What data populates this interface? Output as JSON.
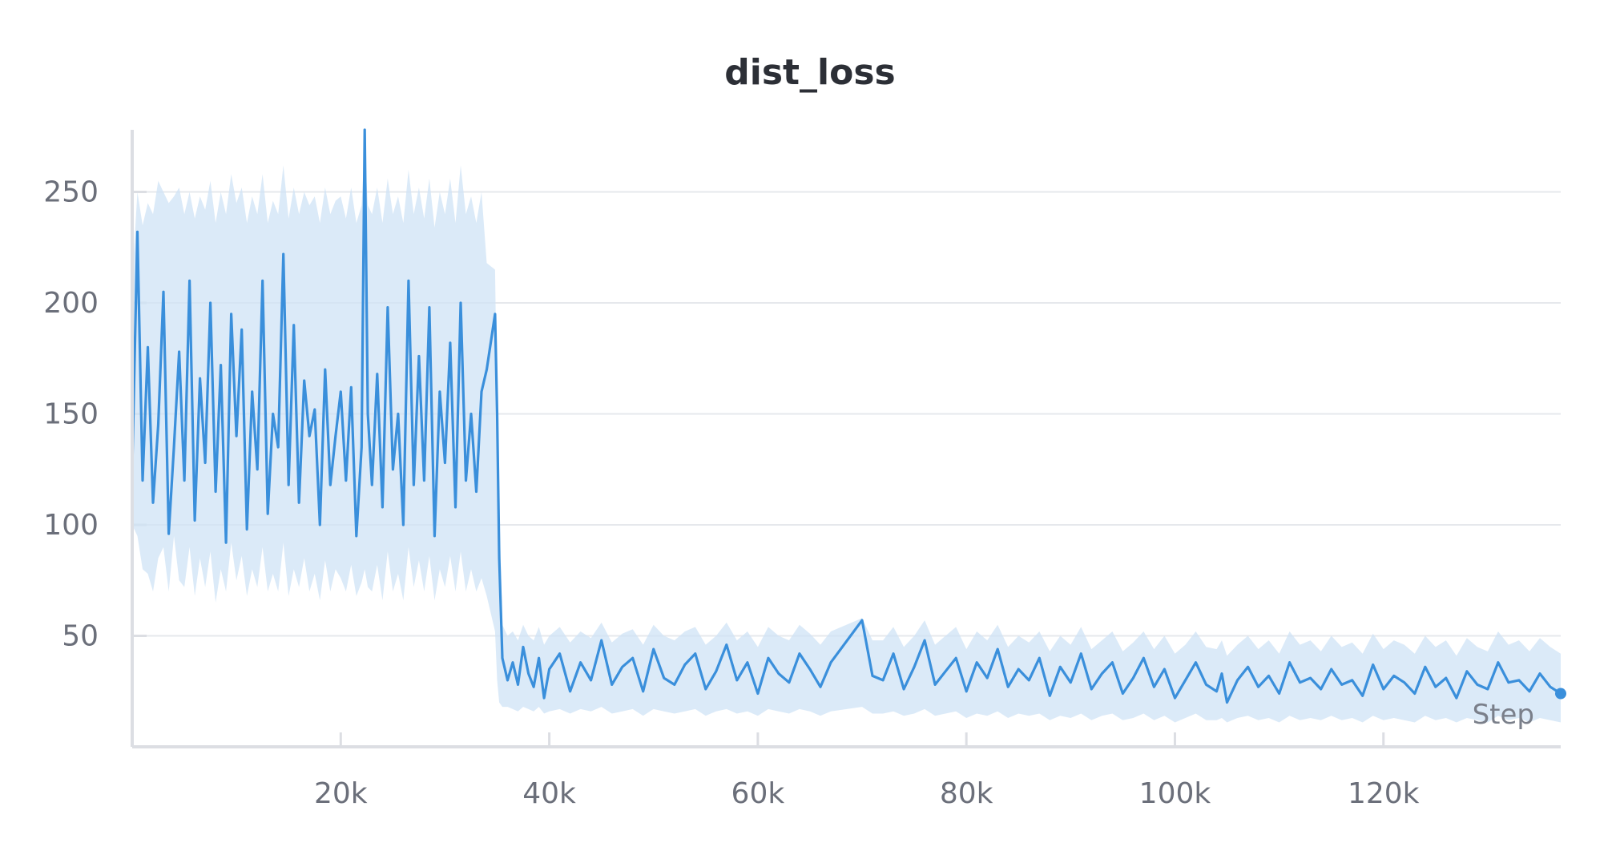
{
  "chart_data": {
    "type": "line",
    "title": "dist_loss",
    "xlabel": "Step",
    "ylabel": "",
    "xlim": [
      0,
      137000
    ],
    "ylim": [
      0,
      278
    ],
    "x_ticks": [
      {
        "value": 20000,
        "label": "20k"
      },
      {
        "value": 40000,
        "label": "40k"
      },
      {
        "value": 60000,
        "label": "60k"
      },
      {
        "value": 80000,
        "label": "80k"
      },
      {
        "value": 100000,
        "label": "100k"
      },
      {
        "value": 120000,
        "label": "120k"
      }
    ],
    "y_ticks": [
      {
        "value": 50,
        "label": "50"
      },
      {
        "value": 100,
        "label": "100"
      },
      {
        "value": 150,
        "label": "150"
      },
      {
        "value": 200,
        "label": "200"
      },
      {
        "value": 250,
        "label": "250"
      }
    ],
    "grid": "horizontal",
    "colors": {
      "line": "#3a8fdb",
      "band": "#cfe3f6",
      "grid": "#e6e8ec",
      "axis": "#dcdee3"
    },
    "series": [
      {
        "x": [
          0,
          500,
          1000,
          1500,
          2000,
          2500,
          3000,
          3500,
          4000,
          4500,
          5000,
          5500,
          6000,
          6500,
          7000,
          7500,
          8000,
          8500,
          9000,
          9500,
          10000,
          10500,
          11000,
          11500,
          12000,
          12500,
          13000,
          13500,
          14000,
          14500,
          15000,
          15500,
          16000,
          16500,
          17000,
          17500,
          18000,
          18500,
          19000,
          19500,
          20000,
          20500,
          21000,
          21500,
          22000,
          22300,
          22600,
          23000,
          23500,
          24000,
          24500,
          25000,
          25500,
          26000,
          26500,
          27000,
          27500,
          28000,
          28500,
          29000,
          29500,
          30000,
          30500,
          31000,
          31500,
          32000,
          32500,
          33000,
          33500,
          34000,
          34800,
          35000,
          35200,
          35500,
          36000,
          36500,
          37000,
          37500,
          38000,
          38500,
          39000,
          39500,
          40000,
          41000,
          42000,
          43000,
          44000,
          45000,
          46000,
          47000,
          48000,
          49000,
          50000,
          51000,
          52000,
          53000,
          54000,
          55000,
          56000,
          57000,
          58000,
          59000,
          60000,
          61000,
          62000,
          63000,
          64000,
          65000,
          66000,
          67000,
          70000,
          71000,
          72000,
          73000,
          74000,
          75000,
          76000,
          77000,
          78000,
          79000,
          80000,
          81000,
          82000,
          83000,
          84000,
          85000,
          86000,
          87000,
          88000,
          89000,
          90000,
          91000,
          92000,
          93000,
          94000,
          95000,
          96000,
          97000,
          98000,
          99000,
          100000,
          101000,
          102000,
          103000,
          104000,
          104500,
          105000,
          106000,
          107000,
          108000,
          109000,
          110000,
          111000,
          112000,
          113000,
          114000,
          115000,
          116000,
          117000,
          118000,
          119000,
          120000,
          121000,
          122000,
          123000,
          124000,
          125000,
          126000,
          127000,
          128000,
          129000,
          130000,
          131000,
          132000,
          133000,
          134000,
          135000,
          136000,
          137000
        ],
        "y": [
          125,
          232,
          120,
          180,
          110,
          145,
          205,
          96,
          135,
          178,
          120,
          210,
          102,
          166,
          128,
          200,
          115,
          172,
          92,
          195,
          140,
          188,
          98,
          160,
          125,
          210,
          105,
          150,
          135,
          222,
          118,
          190,
          110,
          165,
          140,
          152,
          100,
          170,
          118,
          140,
          160,
          120,
          162,
          95,
          135,
          278,
          150,
          118,
          168,
          108,
          198,
          125,
          150,
          100,
          210,
          118,
          176,
          120,
          198,
          95,
          160,
          128,
          182,
          108,
          200,
          120,
          150,
          115,
          160,
          170,
          195,
          150,
          85,
          40,
          30,
          38,
          28,
          45,
          33,
          27,
          40,
          22,
          35,
          42,
          25,
          38,
          30,
          48,
          28,
          36,
          40,
          25,
          44,
          31,
          28,
          37,
          42,
          26,
          34,
          46,
          30,
          38,
          24,
          40,
          33,
          29,
          42,
          35,
          27,
          38,
          57,
          32,
          30,
          42,
          26,
          36,
          48,
          28,
          34,
          40,
          25,
          38,
          31,
          44,
          27,
          35,
          30,
          40,
          23,
          36,
          29,
          42,
          26,
          33,
          38,
          24,
          31,
          40,
          27,
          35,
          22,
          30,
          38,
          28,
          25,
          33,
          20,
          30,
          36,
          27,
          32,
          24,
          38,
          29,
          31,
          26,
          35,
          28,
          30,
          23,
          37,
          26,
          32,
          29,
          24,
          36,
          27,
          31,
          22,
          34,
          28,
          26,
          38,
          29,
          30,
          25,
          33,
          27,
          24
        ],
        "band_lower": [
          100,
          95,
          80,
          78,
          70,
          85,
          90,
          70,
          95,
          75,
          72,
          90,
          68,
          85,
          72,
          88,
          65,
          80,
          70,
          92,
          75,
          86,
          68,
          80,
          72,
          90,
          70,
          78,
          70,
          92,
          68,
          80,
          72,
          85,
          70,
          78,
          66,
          84,
          70,
          80,
          76,
          70,
          82,
          68,
          74,
          80,
          72,
          70,
          82,
          66,
          88,
          70,
          78,
          66,
          90,
          72,
          84,
          70,
          86,
          66,
          80,
          72,
          86,
          70,
          88,
          70,
          80,
          70,
          76,
          68,
          52,
          30,
          20,
          18,
          18,
          17,
          16,
          18,
          17,
          16,
          18,
          15,
          16,
          17,
          15,
          17,
          16,
          18,
          15,
          16,
          17,
          14,
          17,
          16,
          15,
          16,
          17,
          14,
          16,
          17,
          15,
          16,
          14,
          17,
          16,
          15,
          17,
          16,
          14,
          16,
          18,
          15,
          15,
          16,
          14,
          15,
          17,
          14,
          15,
          16,
          13,
          15,
          14,
          16,
          13,
          15,
          14,
          15,
          12,
          14,
          13,
          15,
          12,
          14,
          15,
          12,
          13,
          15,
          12,
          14,
          11,
          13,
          15,
          12,
          12,
          13,
          11,
          13,
          14,
          12,
          13,
          11,
          14,
          12,
          13,
          12,
          14,
          12,
          13,
          11,
          14,
          12,
          13,
          12,
          11,
          14,
          12,
          13,
          11,
          13,
          12,
          11,
          14,
          12,
          13,
          11,
          13,
          12,
          11
        ],
        "band_upper": [
          210,
          250,
          235,
          245,
          240,
          255,
          250,
          245,
          248,
          252,
          240,
          250,
          238,
          248,
          242,
          255,
          236,
          250,
          240,
          258,
          245,
          252,
          236,
          248,
          240,
          258,
          236,
          246,
          240,
          262,
          238,
          252,
          240,
          250,
          244,
          248,
          236,
          252,
          240,
          246,
          248,
          238,
          252,
          236,
          244,
          270,
          244,
          240,
          252,
          236,
          256,
          240,
          248,
          236,
          260,
          240,
          252,
          238,
          256,
          234,
          250,
          240,
          256,
          236,
          262,
          240,
          248,
          236,
          250,
          218,
          215,
          150,
          110,
          55,
          50,
          52,
          48,
          55,
          50,
          48,
          54,
          46,
          50,
          54,
          47,
          52,
          49,
          56,
          47,
          51,
          53,
          46,
          55,
          50,
          48,
          52,
          54,
          46,
          50,
          56,
          48,
          52,
          45,
          54,
          50,
          48,
          55,
          51,
          46,
          52,
          58,
          48,
          48,
          54,
          45,
          50,
          57,
          46,
          50,
          54,
          44,
          52,
          48,
          55,
          45,
          50,
          47,
          52,
          43,
          50,
          46,
          54,
          44,
          48,
          52,
          43,
          47,
          52,
          44,
          50,
          42,
          46,
          52,
          45,
          44,
          48,
          41,
          46,
          50,
          44,
          48,
          42,
          52,
          46,
          48,
          43,
          50,
          45,
          47,
          42,
          51,
          44,
          48,
          46,
          42,
          50,
          45,
          48,
          41,
          49,
          45,
          43,
          52,
          46,
          48,
          43,
          49,
          45,
          42
        ]
      }
    ]
  }
}
